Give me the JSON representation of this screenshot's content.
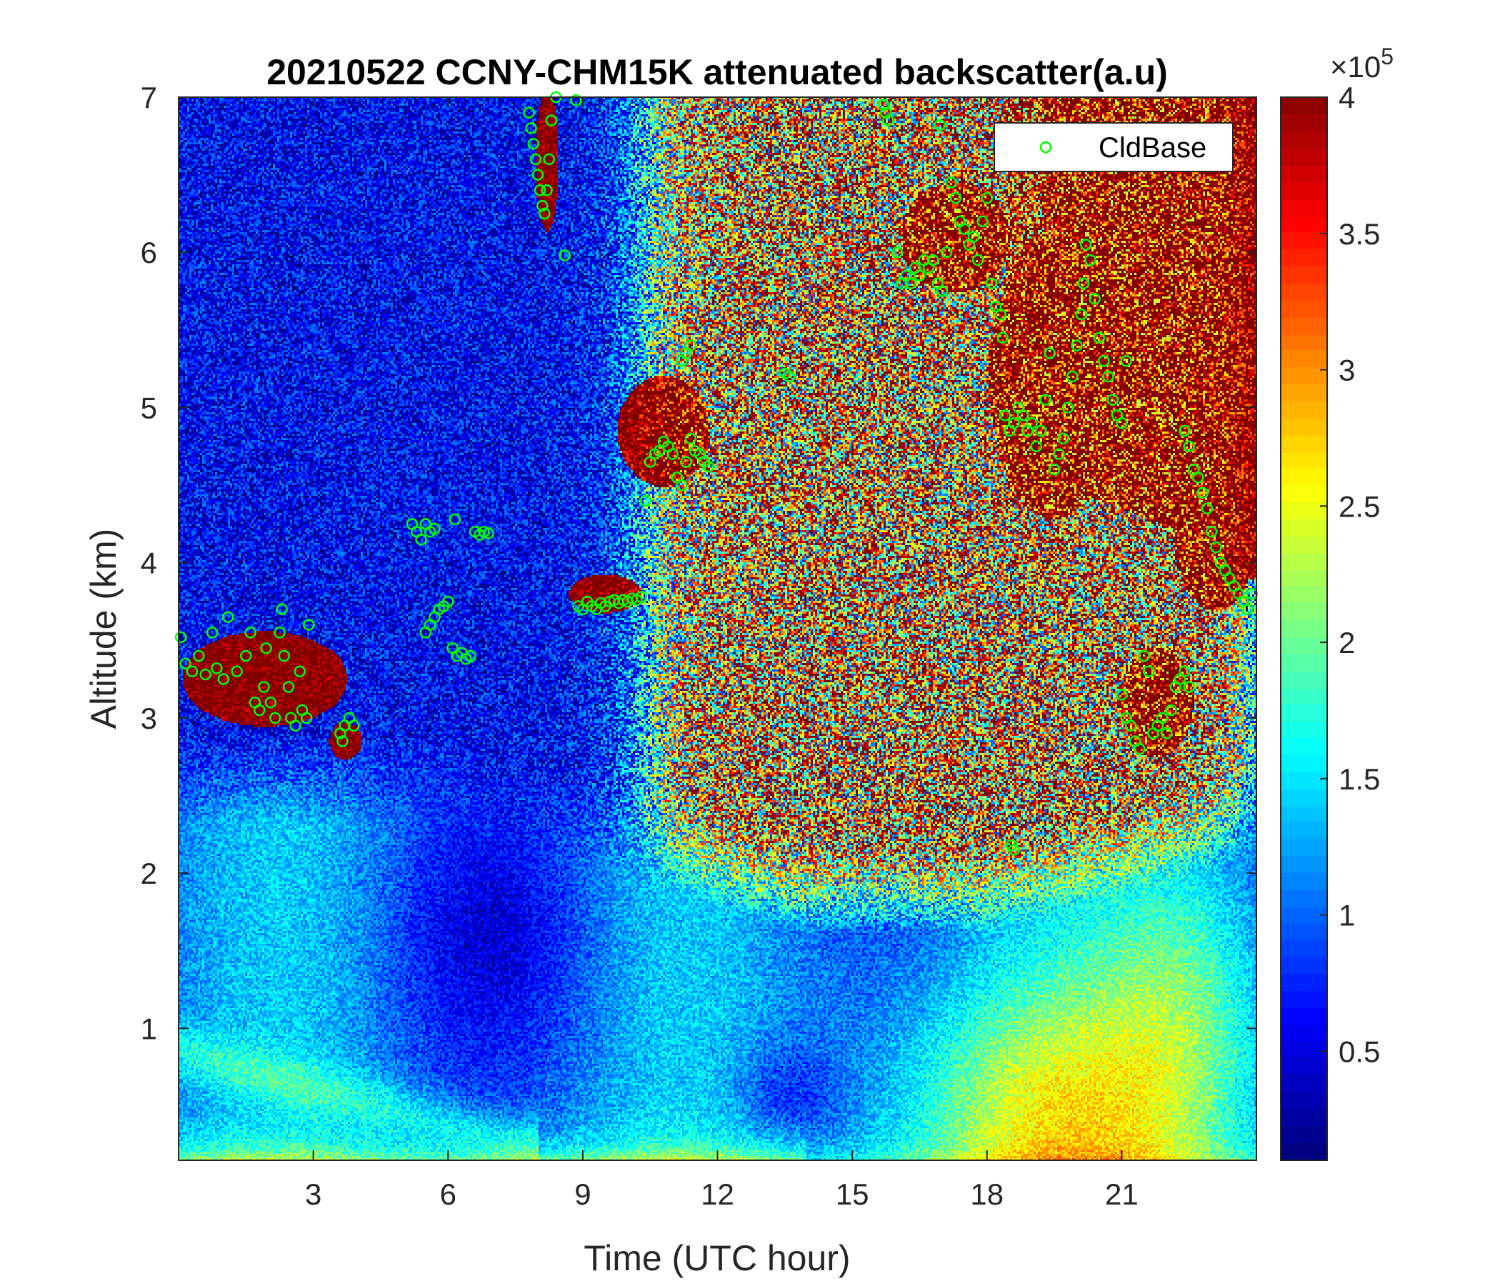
{
  "chart_data": {
    "type": "heatmap",
    "title": "20210522 CCNY-CHM15K attenuated backscatter(a.u)",
    "xlabel": "Time (UTC hour)",
    "ylabel": "Altitude (km)",
    "xlim": [
      0,
      24
    ],
    "ylim": [
      0.15,
      7
    ],
    "x_ticks": [
      3,
      6,
      9,
      12,
      15,
      18,
      21
    ],
    "y_ticks": [
      1,
      2,
      3,
      4,
      5,
      6,
      7
    ],
    "colorbar": {
      "colormap": "jet",
      "clim": [
        0.1,
        4
      ],
      "ticks": [
        "0.5",
        "1",
        "1.5",
        "2",
        "2.5",
        "3",
        "3.5",
        "4"
      ],
      "tick_values": [
        0.5,
        1,
        1.5,
        2,
        2.5,
        3,
        3.5,
        4
      ],
      "exponent_label": "×10",
      "exponent_power": "5"
    },
    "legend": {
      "placement": "top-right",
      "entries": [
        {
          "name": "CldBase",
          "color": "#00ff00",
          "marker": "circle"
        }
      ]
    },
    "series": [
      {
        "name": "CldBase",
        "type": "scatter",
        "points": [
          [
            0.05,
            3.52
          ],
          [
            0.15,
            3.35
          ],
          [
            0.3,
            3.3
          ],
          [
            0.45,
            3.4
          ],
          [
            0.6,
            3.28
          ],
          [
            0.75,
            3.55
          ],
          [
            0.85,
            3.32
          ],
          [
            1.0,
            3.25
          ],
          [
            1.1,
            3.65
          ],
          [
            1.3,
            3.3
          ],
          [
            1.5,
            3.4
          ],
          [
            1.6,
            3.55
          ],
          [
            1.7,
            3.1
          ],
          [
            1.8,
            3.05
          ],
          [
            1.9,
            3.2
          ],
          [
            1.95,
            3.45
          ],
          [
            2.05,
            3.1
          ],
          [
            2.15,
            3.0
          ],
          [
            2.25,
            3.55
          ],
          [
            2.3,
            3.7
          ],
          [
            2.35,
            3.4
          ],
          [
            2.45,
            3.2
          ],
          [
            2.5,
            3.0
          ],
          [
            2.6,
            2.95
          ],
          [
            2.7,
            3.3
          ],
          [
            2.75,
            3.05
          ],
          [
            2.85,
            3.0
          ],
          [
            2.9,
            3.6
          ],
          [
            3.6,
            2.9
          ],
          [
            3.65,
            2.85
          ],
          [
            3.7,
            2.95
          ],
          [
            3.8,
            3.0
          ],
          [
            3.9,
            2.95
          ],
          [
            5.2,
            4.25
          ],
          [
            5.3,
            4.2
          ],
          [
            5.4,
            4.15
          ],
          [
            5.5,
            4.25
          ],
          [
            5.6,
            4.2
          ],
          [
            5.7,
            4.22
          ],
          [
            6.15,
            4.28
          ],
          [
            6.6,
            4.2
          ],
          [
            6.7,
            4.18
          ],
          [
            6.8,
            4.2
          ],
          [
            6.9,
            4.19
          ],
          [
            5.5,
            3.55
          ],
          [
            5.6,
            3.6
          ],
          [
            5.7,
            3.65
          ],
          [
            5.8,
            3.7
          ],
          [
            5.9,
            3.72
          ],
          [
            6.0,
            3.75
          ],
          [
            6.1,
            3.45
          ],
          [
            6.2,
            3.4
          ],
          [
            6.3,
            3.42
          ],
          [
            6.4,
            3.38
          ],
          [
            6.5,
            3.4
          ],
          [
            7.8,
            6.9
          ],
          [
            7.85,
            6.8
          ],
          [
            7.9,
            6.7
          ],
          [
            7.95,
            6.6
          ],
          [
            8.0,
            6.5
          ],
          [
            8.05,
            6.4
          ],
          [
            8.1,
            6.3
          ],
          [
            8.15,
            6.25
          ],
          [
            8.2,
            6.4
          ],
          [
            8.25,
            6.6
          ],
          [
            8.3,
            6.85
          ],
          [
            8.4,
            7.0
          ],
          [
            8.6,
            5.98
          ],
          [
            8.85,
            6.98
          ],
          [
            8.9,
            3.72
          ],
          [
            9.0,
            3.7
          ],
          [
            9.1,
            3.75
          ],
          [
            9.2,
            3.72
          ],
          [
            9.3,
            3.7
          ],
          [
            9.4,
            3.74
          ],
          [
            9.5,
            3.72
          ],
          [
            9.6,
            3.75
          ],
          [
            9.7,
            3.76
          ],
          [
            9.8,
            3.74
          ],
          [
            9.9,
            3.76
          ],
          [
            10.0,
            3.75
          ],
          [
            10.1,
            3.77
          ],
          [
            10.2,
            3.76
          ],
          [
            10.3,
            3.78
          ],
          [
            10.4,
            4.4
          ],
          [
            10.5,
            4.65
          ],
          [
            10.6,
            4.7
          ],
          [
            10.7,
            4.72
          ],
          [
            10.8,
            4.78
          ],
          [
            10.9,
            4.75
          ],
          [
            11.0,
            4.7
          ],
          [
            11.1,
            4.55
          ],
          [
            11.2,
            4.5
          ],
          [
            11.3,
            4.65
          ],
          [
            11.4,
            4.8
          ],
          [
            11.5,
            4.72
          ],
          [
            11.6,
            4.7
          ],
          [
            11.7,
            4.65
          ],
          [
            11.8,
            4.62
          ],
          [
            11.2,
            5.3
          ],
          [
            11.3,
            5.35
          ],
          [
            11.4,
            5.4
          ],
          [
            13.5,
            5.22
          ],
          [
            13.6,
            5.2
          ],
          [
            15.7,
            6.95
          ],
          [
            15.75,
            6.9
          ],
          [
            15.8,
            6.85
          ],
          [
            16.0,
            6.0
          ],
          [
            16.1,
            5.8
          ],
          [
            16.2,
            5.85
          ],
          [
            16.3,
            5.8
          ],
          [
            16.4,
            5.9
          ],
          [
            16.5,
            5.85
          ],
          [
            16.6,
            5.95
          ],
          [
            16.7,
            5.9
          ],
          [
            16.8,
            5.95
          ],
          [
            16.9,
            5.8
          ],
          [
            17.0,
            5.75
          ],
          [
            17.1,
            6.0
          ],
          [
            16.95,
            6.82
          ],
          [
            17.2,
            6.45
          ],
          [
            17.3,
            6.35
          ],
          [
            17.4,
            6.2
          ],
          [
            17.5,
            6.15
          ],
          [
            17.6,
            6.05
          ],
          [
            17.7,
            6.1
          ],
          [
            17.8,
            5.95
          ],
          [
            17.9,
            6.2
          ],
          [
            18.0,
            6.35
          ],
          [
            18.1,
            5.8
          ],
          [
            18.2,
            5.65
          ],
          [
            18.3,
            5.6
          ],
          [
            18.35,
            5.45
          ],
          [
            18.4,
            4.95
          ],
          [
            18.5,
            4.85
          ],
          [
            18.6,
            4.9
          ],
          [
            18.7,
            5.0
          ],
          [
            18.8,
            4.95
          ],
          [
            18.9,
            4.85
          ],
          [
            19.0,
            4.9
          ],
          [
            19.1,
            4.75
          ],
          [
            19.2,
            4.85
          ],
          [
            19.3,
            5.05
          ],
          [
            19.4,
            5.35
          ],
          [
            19.5,
            4.6
          ],
          [
            19.6,
            4.7
          ],
          [
            19.7,
            4.8
          ],
          [
            19.8,
            5.0
          ],
          [
            19.9,
            5.2
          ],
          [
            20.0,
            5.4
          ],
          [
            20.1,
            5.6
          ],
          [
            20.15,
            5.8
          ],
          [
            20.2,
            6.05
          ],
          [
            20.3,
            5.95
          ],
          [
            20.4,
            5.7
          ],
          [
            20.5,
            5.45
          ],
          [
            20.6,
            5.3
          ],
          [
            20.7,
            5.2
          ],
          [
            20.8,
            5.05
          ],
          [
            20.9,
            4.95
          ],
          [
            21.0,
            4.9
          ],
          [
            21.1,
            5.3
          ],
          [
            18.55,
            2.18
          ],
          [
            18.6,
            2.15
          ],
          [
            21.0,
            3.15
          ],
          [
            21.1,
            3.0
          ],
          [
            21.2,
            2.95
          ],
          [
            21.3,
            2.85
          ],
          [
            21.4,
            2.8
          ],
          [
            21.5,
            3.4
          ],
          [
            21.6,
            3.3
          ],
          [
            21.7,
            2.9
          ],
          [
            21.8,
            2.95
          ],
          [
            21.9,
            3.0
          ],
          [
            22.0,
            2.9
          ],
          [
            22.1,
            3.05
          ],
          [
            22.2,
            3.2
          ],
          [
            22.3,
            3.25
          ],
          [
            22.4,
            3.3
          ],
          [
            22.5,
            3.2
          ],
          [
            22.4,
            4.85
          ],
          [
            22.5,
            4.75
          ],
          [
            22.6,
            4.6
          ],
          [
            22.7,
            4.55
          ],
          [
            22.8,
            4.45
          ],
          [
            22.9,
            4.35
          ],
          [
            23.0,
            4.2
          ],
          [
            23.1,
            4.1
          ],
          [
            23.2,
            4.0
          ],
          [
            23.3,
            3.95
          ],
          [
            23.4,
            3.9
          ],
          [
            23.5,
            3.85
          ],
          [
            23.6,
            3.8
          ],
          [
            23.7,
            3.75
          ],
          [
            23.8,
            3.7
          ],
          [
            23.9,
            3.8
          ]
        ]
      }
    ]
  }
}
